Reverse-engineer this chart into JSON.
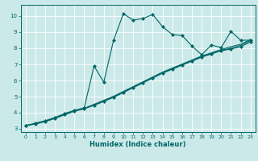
{
  "xlabel": "Humidex (Indice chaleur)",
  "ylabel": "",
  "background_color": "#cce9e9",
  "grid_color": "#ffffff",
  "line_color": "#006666",
  "xlim": [
    -0.5,
    23.5
  ],
  "ylim": [
    2.8,
    10.7
  ],
  "xticks": [
    0,
    1,
    2,
    3,
    4,
    5,
    6,
    7,
    8,
    9,
    10,
    11,
    12,
    13,
    14,
    15,
    16,
    17,
    18,
    19,
    20,
    21,
    22,
    23
  ],
  "yticks": [
    3,
    4,
    5,
    6,
    7,
    8,
    9,
    10
  ],
  "series1_x": [
    0,
    1,
    2,
    3,
    4,
    5,
    6,
    7,
    8,
    9,
    10,
    11,
    12,
    13,
    14,
    15,
    16,
    17,
    18,
    19,
    20,
    21,
    22,
    23
  ],
  "series1_y": [
    3.2,
    3.35,
    3.5,
    3.7,
    3.95,
    4.15,
    4.3,
    6.9,
    5.9,
    8.5,
    10.15,
    9.75,
    9.85,
    10.1,
    9.35,
    8.85,
    8.8,
    8.15,
    7.6,
    8.2,
    8.05,
    9.05,
    8.5,
    8.5
  ],
  "series2_x": [
    0,
    1,
    2,
    3,
    4,
    5,
    6,
    7,
    8,
    9,
    10,
    11,
    12,
    13,
    14,
    15,
    16,
    17,
    18,
    19,
    20,
    21,
    22,
    23
  ],
  "series2_y": [
    3.2,
    3.3,
    3.45,
    3.65,
    3.88,
    4.1,
    4.25,
    4.45,
    4.7,
    4.95,
    5.25,
    5.55,
    5.85,
    6.15,
    6.45,
    6.7,
    6.95,
    7.2,
    7.45,
    7.65,
    7.85,
    7.95,
    8.1,
    8.4
  ],
  "series3_x": [
    0,
    1,
    2,
    3,
    4,
    5,
    6,
    7,
    8,
    9,
    10,
    11,
    12,
    13,
    14,
    15,
    16,
    17,
    18,
    19,
    20,
    21,
    22,
    23
  ],
  "series3_y": [
    3.2,
    3.3,
    3.45,
    3.65,
    3.88,
    4.1,
    4.25,
    4.48,
    4.73,
    4.98,
    5.28,
    5.58,
    5.88,
    6.18,
    6.48,
    6.73,
    6.98,
    7.23,
    7.48,
    7.68,
    7.88,
    8.0,
    8.18,
    8.48
  ],
  "series4_x": [
    0,
    1,
    2,
    3,
    4,
    5,
    6,
    7,
    8,
    9,
    10,
    11,
    12,
    13,
    14,
    15,
    16,
    17,
    18,
    19,
    20,
    21,
    22,
    23
  ],
  "series4_y": [
    3.2,
    3.32,
    3.47,
    3.67,
    3.9,
    4.12,
    4.27,
    4.52,
    4.77,
    5.02,
    5.32,
    5.62,
    5.92,
    6.22,
    6.52,
    6.77,
    7.02,
    7.27,
    7.52,
    7.72,
    7.92,
    8.1,
    8.25,
    8.55
  ]
}
